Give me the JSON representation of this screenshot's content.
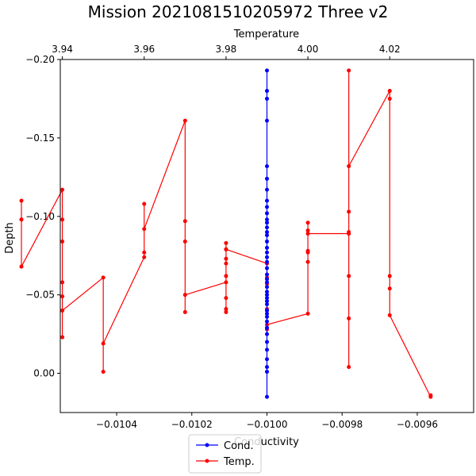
{
  "chart_data": {
    "type": "line",
    "title": "Mission 2021081510205972 Three v2",
    "xlabel_bottom": "Conductivity",
    "xlabel_top": "Temperature",
    "ylabel": "Depth",
    "y_inverted": true,
    "ylim": [
      0.025,
      -0.2
    ],
    "xlim_bottom": [
      -0.01055,
      -0.00945
    ],
    "xlim_top": [
      3.9395,
      4.0405
    ],
    "yticks": [
      -0.2,
      -0.15,
      -0.1,
      -0.05,
      0.0
    ],
    "yticklabels": [
      "−0.20",
      "−0.15",
      "−0.10",
      "−0.05",
      "0.00"
    ],
    "xticks_bottom": [
      -0.0104,
      -0.0102,
      -0.01,
      -0.0098,
      -0.0096
    ],
    "xticklabels_bottom": [
      "−0.0104",
      "−0.0102",
      "−0.0100",
      "−0.0098",
      "−0.0096"
    ],
    "xticks_top": [
      3.94,
      3.96,
      3.98,
      4.0,
      4.02
    ],
    "xticklabels_top": [
      "3.94",
      "3.96",
      "3.98",
      "4.00",
      "4.02"
    ],
    "legend_position": "bottom-center",
    "series": [
      {
        "name": "Cond.",
        "color": "#0000ff",
        "axis": "bottom",
        "x": [
          -0.01,
          -0.01,
          -0.01,
          -0.01,
          -0.01,
          -0.01,
          -0.01,
          -0.01,
          -0.01,
          -0.01,
          -0.01,
          -0.01,
          -0.01,
          -0.01,
          -0.01,
          -0.01,
          -0.01,
          -0.01,
          -0.01,
          -0.01,
          -0.01,
          -0.01,
          -0.01,
          -0.01,
          -0.01,
          -0.01,
          -0.01,
          -0.01,
          -0.01,
          -0.01,
          -0.01,
          -0.01,
          -0.01,
          -0.01,
          -0.01,
          -0.01,
          -0.01,
          -0.01,
          -0.01,
          -0.01,
          -0.01,
          -0.01
        ],
        "y": [
          -0.193,
          -0.18,
          -0.175,
          -0.161,
          -0.132,
          -0.124,
          -0.117,
          -0.11,
          -0.106,
          -0.102,
          -0.098,
          -0.096,
          -0.093,
          -0.09,
          -0.088,
          -0.084,
          -0.08,
          -0.077,
          -0.074,
          -0.071,
          -0.067,
          -0.063,
          -0.06,
          -0.058,
          -0.055,
          -0.052,
          -0.05,
          -0.048,
          -0.046,
          -0.044,
          -0.04,
          -0.038,
          -0.036,
          -0.033,
          -0.029,
          -0.025,
          -0.02,
          -0.015,
          -0.009,
          -0.004,
          -0.001,
          0.015
        ]
      },
      {
        "name": "Temp.",
        "color": "#ff0000",
        "axis": "top",
        "x": [
          4.03,
          4.03,
          4.02,
          4.02,
          4.02,
          4.02,
          4.02,
          4.01,
          4.01,
          4.01,
          4.01,
          4.01,
          4.01,
          4.01,
          4.01,
          4.01,
          4.0,
          4.0,
          4.0,
          4.0,
          4.0,
          4.0,
          4.0,
          3.99,
          3.99,
          3.99,
          3.99,
          3.99,
          3.99,
          3.98,
          3.98,
          3.98,
          3.98,
          3.98,
          3.98,
          3.98,
          3.98,
          3.98,
          3.98,
          3.97,
          3.97,
          3.97,
          3.97,
          3.97,
          3.96,
          3.96,
          3.96,
          3.96,
          3.95,
          3.95,
          3.95,
          3.94,
          3.94,
          3.94,
          3.94,
          3.94,
          3.94,
          3.94,
          3.93,
          3.93,
          3.93,
          3.93
        ],
        "y": [
          0.014,
          0.015,
          -0.037,
          -0.054,
          -0.062,
          -0.175,
          -0.18,
          -0.132,
          -0.193,
          -0.103,
          -0.09,
          -0.089,
          -0.062,
          -0.035,
          -0.004,
          -0.089,
          -0.089,
          -0.096,
          -0.091,
          -0.078,
          -0.077,
          -0.071,
          -0.038,
          -0.031,
          -0.041,
          -0.028,
          -0.057,
          -0.061,
          -0.07,
          -0.079,
          -0.048,
          -0.041,
          -0.039,
          -0.083,
          -0.079,
          -0.073,
          -0.07,
          -0.062,
          -0.058,
          -0.05,
          -0.039,
          -0.084,
          -0.097,
          -0.161,
          -0.092,
          -0.108,
          -0.077,
          -0.074,
          -0.019,
          -0.001,
          -0.061,
          -0.04,
          -0.023,
          -0.049,
          -0.058,
          -0.084,
          -0.098,
          -0.117,
          -0.068,
          -0.098,
          -0.11,
          -0.098
        ]
      }
    ]
  }
}
